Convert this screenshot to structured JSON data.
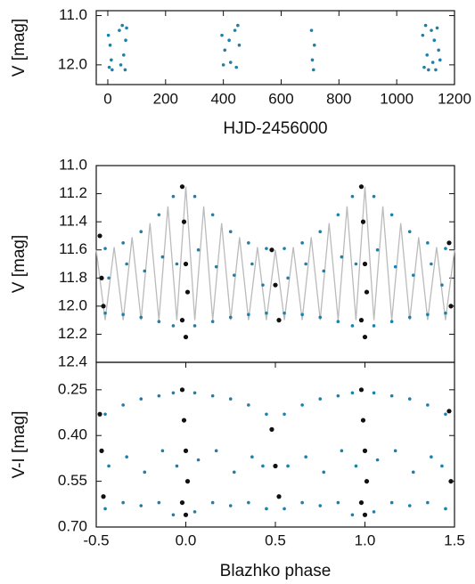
{
  "chart_data": [
    {
      "type": "scatter",
      "xlabel": "HJD-2456000",
      "ylabel": "V [mag]",
      "xlim": [
        -40,
        1200
      ],
      "ylim": [
        12.4,
        10.9
      ],
      "xticks": [
        0,
        200,
        400,
        600,
        800,
        1000,
        1200
      ],
      "yticks": [
        {
          "value": 11,
          "label": "11.0"
        },
        {
          "value": 12,
          "label": "12.0"
        }
      ],
      "series": [
        {
          "color": "#1f7fa8",
          "x": [
            2,
            5,
            8,
            12,
            15,
            40,
            45,
            50,
            55,
            60,
            62,
            65,
            395,
            400,
            405,
            420,
            425,
            440,
            445,
            450,
            455,
            705,
            708,
            712,
            715,
            1090,
            1095,
            1100,
            1105,
            1110,
            1120,
            1125,
            1130,
            1135,
            1140,
            1145,
            1150
          ],
          "values": [
            11.4,
            12.05,
            11.6,
            11.9,
            12.1,
            11.3,
            12.0,
            11.2,
            11.8,
            12.1,
            11.5,
            11.25,
            11.4,
            12.0,
            11.7,
            11.5,
            11.95,
            11.3,
            12.05,
            11.2,
            11.6,
            11.3,
            11.9,
            12.1,
            11.6,
            11.4,
            12.05,
            11.2,
            11.8,
            12.1,
            11.3,
            11.95,
            11.5,
            12.1,
            11.25,
            11.7,
            11.9
          ]
        }
      ]
    },
    {
      "type": "scatter",
      "ylabel": "V [mag]",
      "xlim": [
        -0.5,
        1.5
      ],
      "ylim": [
        12.4,
        11.0
      ],
      "yticks": [
        {
          "value": 11,
          "label": "11.0"
        },
        11.2,
        11.4,
        11.6,
        11.8,
        {
          "value": 12,
          "label": "12.0"
        },
        12.2,
        12.4
      ],
      "series": [
        {
          "color": "#bbbbbb",
          "style": "line",
          "x": [
            -0.5,
            -0.45,
            -0.4,
            -0.35,
            -0.3,
            -0.25,
            -0.2,
            -0.15,
            -0.1,
            -0.05,
            0,
            0.05,
            0.1,
            0.15,
            0.2,
            0.25,
            0.3,
            0.35,
            0.4,
            0.45,
            0.5,
            0.55,
            0.6,
            0.65,
            0.7,
            0.75,
            0.8,
            0.85,
            0.9,
            0.95,
            1,
            1.05,
            1.1,
            1.15,
            1.2,
            1.25,
            1.3,
            1.35,
            1.4,
            1.45,
            1.5
          ],
          "values": [
            11.6,
            12.1,
            11.58,
            12.1,
            11.51,
            12.1,
            11.41,
            12.1,
            11.29,
            12.1,
            11.15,
            12.1,
            11.29,
            12.1,
            11.41,
            12.1,
            11.51,
            12.1,
            11.58,
            12.1,
            11.6,
            12.1,
            11.58,
            12.1,
            11.51,
            12.1,
            11.41,
            12.1,
            11.29,
            12.1,
            11.15,
            12.1,
            11.29,
            12.1,
            11.41,
            12.1,
            11.51,
            12.1,
            11.58,
            12.1,
            11.6
          ]
        },
        {
          "color": "#1f7fa8",
          "x": [
            -0.45,
            -0.43,
            -0.45,
            -0.35,
            -0.33,
            -0.35,
            -0.25,
            -0.23,
            -0.25,
            -0.15,
            -0.13,
            -0.15,
            -0.07,
            -0.05,
            -0.07,
            0.05,
            0.07,
            0.05,
            0.15,
            0.17,
            0.15,
            0.25,
            0.27,
            0.25,
            0.35,
            0.37,
            0.35,
            0.45,
            0.43,
            0.45,
            0.55,
            0.57,
            0.55,
            0.65,
            0.67,
            0.65,
            0.75,
            0.77,
            0.75,
            0.85,
            0.87,
            0.85,
            0.93,
            0.95,
            0.93,
            1.05,
            1.07,
            1.05,
            1.15,
            1.17,
            1.15,
            1.25,
            1.27,
            1.25,
            1.35,
            1.37,
            1.35,
            1.45,
            1.43,
            1.45
          ],
          "values": [
            11.59,
            11.8,
            12.05,
            11.55,
            11.7,
            12.06,
            11.47,
            11.75,
            12.08,
            11.35,
            11.65,
            12.11,
            11.22,
            11.7,
            12.14,
            11.22,
            11.6,
            12.14,
            11.35,
            11.72,
            12.11,
            11.47,
            11.78,
            12.08,
            11.55,
            11.7,
            12.06,
            11.59,
            11.85,
            12.05,
            11.59,
            11.8,
            12.05,
            11.55,
            11.7,
            12.06,
            11.47,
            11.75,
            12.08,
            11.35,
            11.65,
            12.11,
            11.22,
            11.7,
            12.14,
            11.22,
            11.6,
            12.14,
            11.35,
            11.72,
            12.11,
            11.47,
            11.78,
            12.08,
            11.55,
            11.7,
            12.06,
            11.59,
            11.85,
            12.05
          ]
        },
        {
          "color": "#111111",
          "x": [
            -0.48,
            -0.47,
            -0.46,
            -0.02,
            -0.01,
            0,
            0.01,
            -0.02,
            0,
            0.48,
            0.5,
            0.52,
            0.98,
            0.99,
            1,
            1.01,
            0.98,
            1,
            1.47,
            1.48
          ],
          "values": [
            11.5,
            11.8,
            12.0,
            11.15,
            11.4,
            11.7,
            11.9,
            12.1,
            12.22,
            11.6,
            11.85,
            12.1,
            11.15,
            11.4,
            11.7,
            11.9,
            12.1,
            12.22,
            11.55,
            12.0
          ]
        }
      ]
    },
    {
      "type": "scatter",
      "xlabel": "Blazhko phase",
      "ylabel": "V-I [mag]",
      "xlim": [
        -0.5,
        1.5
      ],
      "ylim": [
        0.7,
        0.16
      ],
      "xticks": [
        -0.5,
        {
          "value": 0,
          "label": "0.0"
        },
        0.5,
        {
          "value": 1,
          "label": "1.0"
        },
        1.5
      ],
      "yticks": [
        0.25,
        {
          "value": 0.4,
          "label": "0.40"
        },
        0.55,
        {
          "value": 0.7,
          "label": "0.70"
        }
      ],
      "series": [
        {
          "color": "#1f7fa8",
          "x": [
            -0.45,
            -0.43,
            -0.45,
            -0.35,
            -0.33,
            -0.35,
            -0.25,
            -0.23,
            -0.25,
            -0.15,
            -0.13,
            -0.15,
            -0.07,
            -0.05,
            -0.07,
            0.05,
            0.07,
            0.05,
            0.15,
            0.17,
            0.15,
            0.25,
            0.27,
            0.25,
            0.35,
            0.37,
            0.35,
            0.45,
            0.43,
            0.45,
            0.55,
            0.57,
            0.55,
            0.65,
            0.67,
            0.65,
            0.75,
            0.77,
            0.75,
            0.85,
            0.87,
            0.85,
            0.93,
            0.95,
            0.93,
            1.05,
            1.07,
            1.05,
            1.15,
            1.17,
            1.15,
            1.25,
            1.27,
            1.25,
            1.35,
            1.37,
            1.35,
            1.45,
            1.43,
            1.45
          ],
          "values": [
            0.33,
            0.5,
            0.64,
            0.3,
            0.47,
            0.62,
            0.28,
            0.52,
            0.63,
            0.27,
            0.45,
            0.62,
            0.26,
            0.5,
            0.66,
            0.26,
            0.48,
            0.65,
            0.27,
            0.45,
            0.62,
            0.28,
            0.52,
            0.63,
            0.3,
            0.47,
            0.62,
            0.33,
            0.5,
            0.64,
            0.33,
            0.5,
            0.64,
            0.3,
            0.47,
            0.62,
            0.28,
            0.52,
            0.63,
            0.27,
            0.45,
            0.62,
            0.26,
            0.5,
            0.66,
            0.26,
            0.48,
            0.65,
            0.27,
            0.45,
            0.62,
            0.28,
            0.52,
            0.63,
            0.3,
            0.47,
            0.62,
            0.33,
            0.5,
            0.64
          ]
        },
        {
          "color": "#111111",
          "x": [
            -0.48,
            -0.47,
            -0.46,
            -0.02,
            -0.01,
            0,
            0.01,
            -0.02,
            0,
            0.48,
            0.5,
            0.52,
            0.98,
            0.99,
            1,
            1.01,
            0.98,
            1,
            1.47,
            1.48
          ],
          "values": [
            0.33,
            0.45,
            0.6,
            0.25,
            0.35,
            0.45,
            0.55,
            0.62,
            0.66,
            0.38,
            0.5,
            0.6,
            0.25,
            0.35,
            0.45,
            0.55,
            0.62,
            0.66,
            0.32,
            0.55
          ]
        }
      ]
    }
  ]
}
